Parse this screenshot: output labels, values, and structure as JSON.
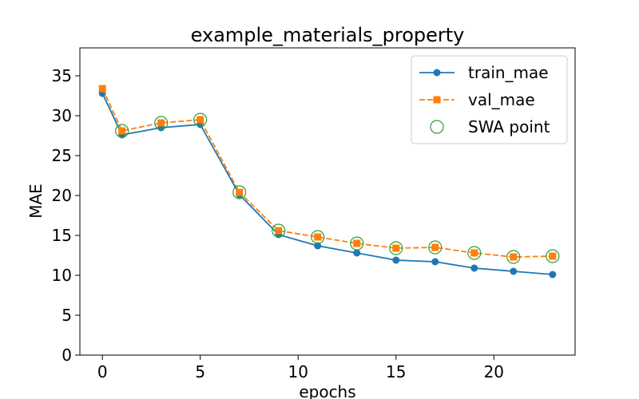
{
  "chart_data": {
    "type": "line",
    "title": "example_materials_property",
    "xlabel": "epochs",
    "ylabel": "MAE",
    "xlim": [
      -1.15,
      24.15
    ],
    "ylim": [
      0,
      38.5
    ],
    "xticks": [
      0,
      5,
      10,
      15,
      20
    ],
    "yticks": [
      0,
      5,
      10,
      15,
      20,
      25,
      30,
      35
    ],
    "grid": false,
    "legend_position": "top-right",
    "series": [
      {
        "name": "train_mae",
        "color": "#1f77b4",
        "style": "solid",
        "marker": "circle",
        "x": [
          0,
          1,
          3,
          5,
          7,
          9,
          11,
          13,
          15,
          17,
          19,
          21,
          23
        ],
        "y": [
          32.8,
          27.6,
          28.5,
          28.9,
          20.1,
          15.1,
          13.7,
          12.8,
          11.9,
          11.7,
          10.9,
          10.5,
          10.1
        ]
      },
      {
        "name": "val_mae",
        "color": "#ff7f0e",
        "style": "dashed",
        "marker": "square",
        "x": [
          0,
          1,
          3,
          5,
          7,
          9,
          11,
          13,
          15,
          17,
          19,
          21,
          23
        ],
        "y": [
          33.4,
          28.1,
          29.1,
          29.5,
          20.4,
          15.6,
          14.8,
          14.0,
          13.4,
          13.5,
          12.8,
          12.3,
          12.4
        ]
      },
      {
        "name": "SWA point",
        "color": "#2ca02c",
        "style": "none",
        "marker": "open-circle",
        "x": [
          1,
          3,
          5,
          7,
          9,
          11,
          13,
          15,
          17,
          19,
          21,
          23
        ],
        "y": [
          28.1,
          29.1,
          29.5,
          20.4,
          15.6,
          14.8,
          14.0,
          13.4,
          13.5,
          12.8,
          12.3,
          12.4
        ]
      }
    ]
  }
}
